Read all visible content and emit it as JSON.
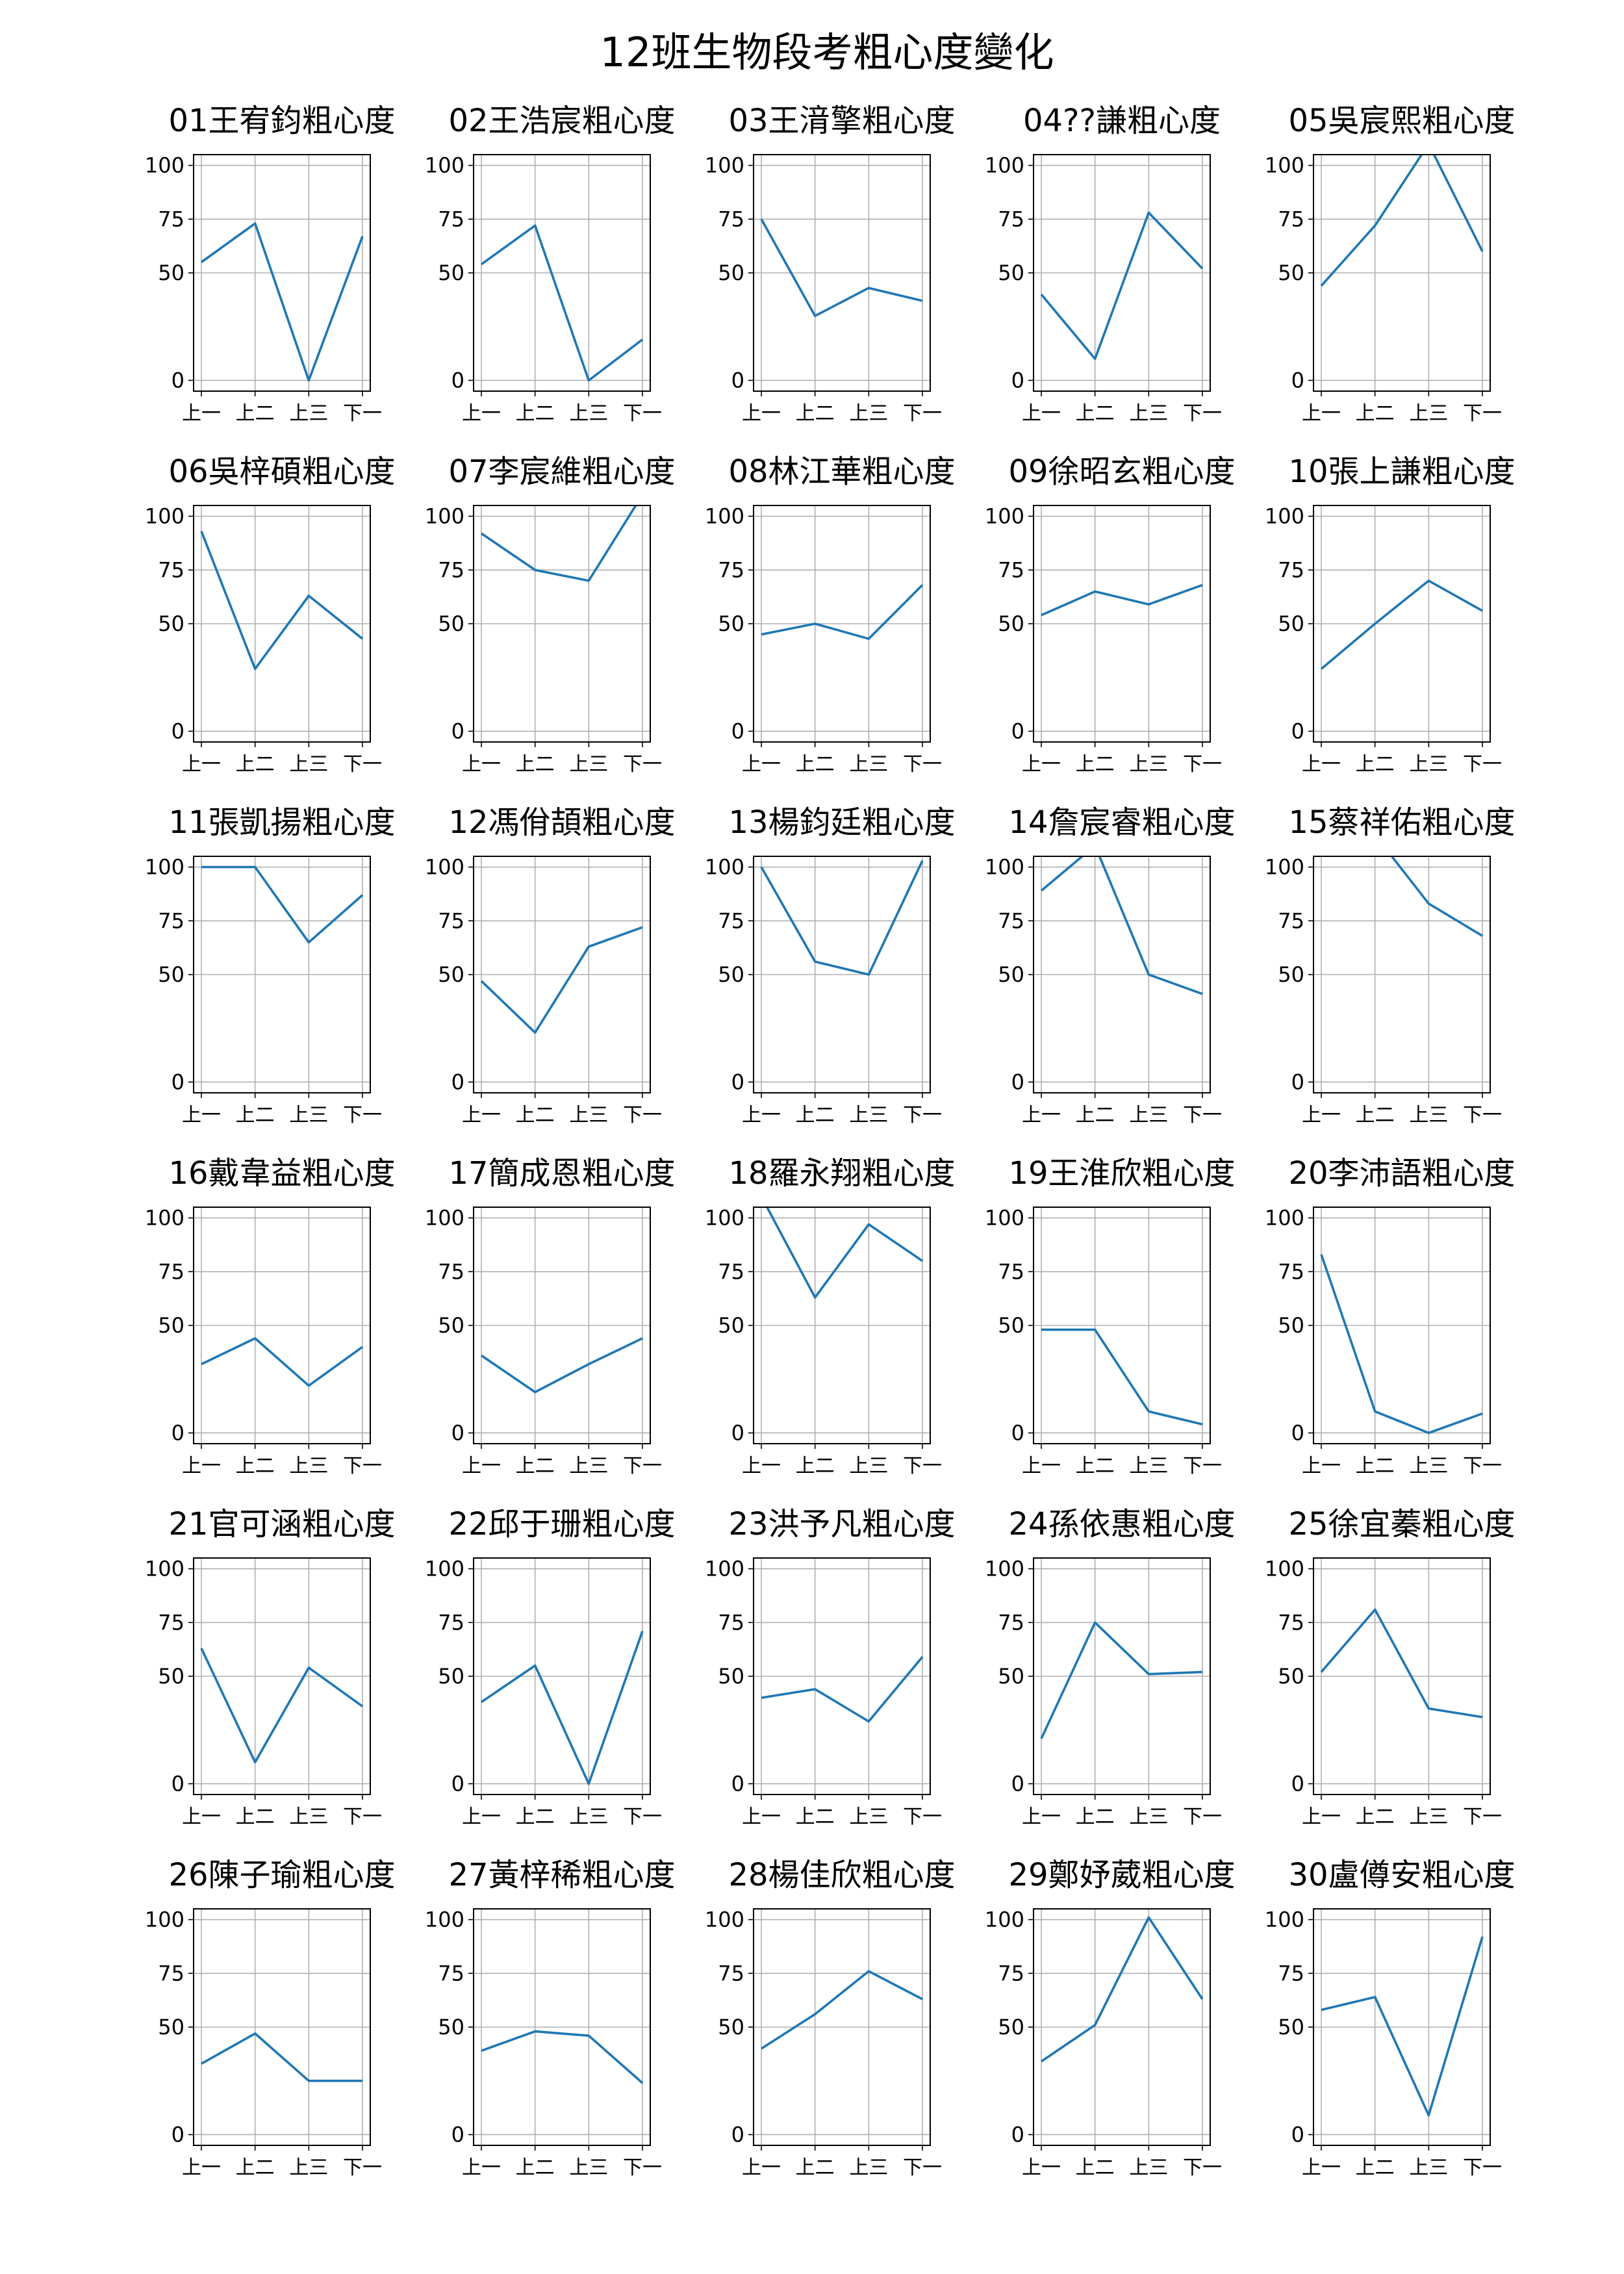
{
  "figure_title": "12班生物段考粗心度變化",
  "colors": {
    "line": "#1f77b4",
    "grid": "#b0b0b0",
    "frame": "#000000"
  },
  "chart_data": {
    "type": "line",
    "categories": [
      "上一",
      "上二",
      "上三",
      "下一"
    ],
    "ylim": [
      -5,
      105
    ],
    "yticks": [
      0,
      50,
      75,
      100
    ],
    "grid": true,
    "legend": "none",
    "subplots": [
      {
        "title": "01王宥鈞粗心度",
        "values": [
          55,
          73,
          0,
          67
        ]
      },
      {
        "title": "02王浩宸粗心度",
        "values": [
          54,
          72,
          0,
          19
        ]
      },
      {
        "title": "03王湇擎粗心度",
        "values": [
          75,
          30,
          43,
          37
        ]
      },
      {
        "title": "04??謙粗心度",
        "values": [
          40,
          10,
          78,
          52
        ]
      },
      {
        "title": "05吳宸熙粗心度",
        "values": [
          44,
          72,
          110,
          60
        ]
      },
      {
        "title": "06吳梓碩粗心度",
        "values": [
          93,
          29,
          63,
          43
        ]
      },
      {
        "title": "07李宸維粗心度",
        "values": [
          92,
          75,
          70,
          110
        ]
      },
      {
        "title": "08林江華粗心度",
        "values": [
          45,
          50,
          43,
          68
        ]
      },
      {
        "title": "09徐昭玄粗心度",
        "values": [
          54,
          65,
          59,
          68
        ]
      },
      {
        "title": "10張上謙粗心度",
        "values": [
          29,
          50,
          70,
          56
        ]
      },
      {
        "title": "11張凱揚粗心度",
        "values": [
          100,
          100,
          65,
          87
        ]
      },
      {
        "title": "12馮佾頡粗心度",
        "values": [
          47,
          23,
          63,
          72
        ]
      },
      {
        "title": "13楊鈞廷粗心度",
        "values": [
          100,
          56,
          50,
          103
        ]
      },
      {
        "title": "14詹宸睿粗心度",
        "values": [
          89,
          110,
          50,
          41
        ]
      },
      {
        "title": "15蔡祥佑粗心度",
        "values": [
          null,
          115,
          83,
          68
        ]
      },
      {
        "title": "16戴韋益粗心度",
        "values": [
          32,
          44,
          22,
          40
        ]
      },
      {
        "title": "17簡成恩粗心度",
        "values": [
          36,
          19,
          32,
          44
        ]
      },
      {
        "title": "18羅永翔粗心度",
        "values": [
          110,
          63,
          97,
          80
        ]
      },
      {
        "title": "19王淮欣粗心度",
        "values": [
          48,
          48,
          10,
          4
        ]
      },
      {
        "title": "20李沛語粗心度",
        "values": [
          83,
          10,
          0,
          9
        ]
      },
      {
        "title": "21官可涵粗心度",
        "values": [
          63,
          10,
          54,
          36
        ]
      },
      {
        "title": "22邱于珊粗心度",
        "values": [
          38,
          55,
          0,
          71
        ]
      },
      {
        "title": "23洪予凡粗心度",
        "values": [
          40,
          44,
          29,
          59
        ]
      },
      {
        "title": "24孫依惠粗心度",
        "values": [
          21,
          75,
          51,
          52
        ]
      },
      {
        "title": "25徐宜蓁粗心度",
        "values": [
          52,
          81,
          35,
          31
        ]
      },
      {
        "title": "26陳子瑜粗心度",
        "values": [
          33,
          47,
          25,
          25
        ]
      },
      {
        "title": "27黃梓稀粗心度",
        "values": [
          39,
          48,
          46,
          24
        ]
      },
      {
        "title": "28楊佳欣粗心度",
        "values": [
          40,
          56,
          76,
          63
        ]
      },
      {
        "title": "29鄭妤葳粗心度",
        "values": [
          34,
          51,
          101,
          63
        ]
      },
      {
        "title": "30盧僔安粗心度",
        "values": [
          58,
          64,
          9,
          92
        ]
      }
    ]
  }
}
